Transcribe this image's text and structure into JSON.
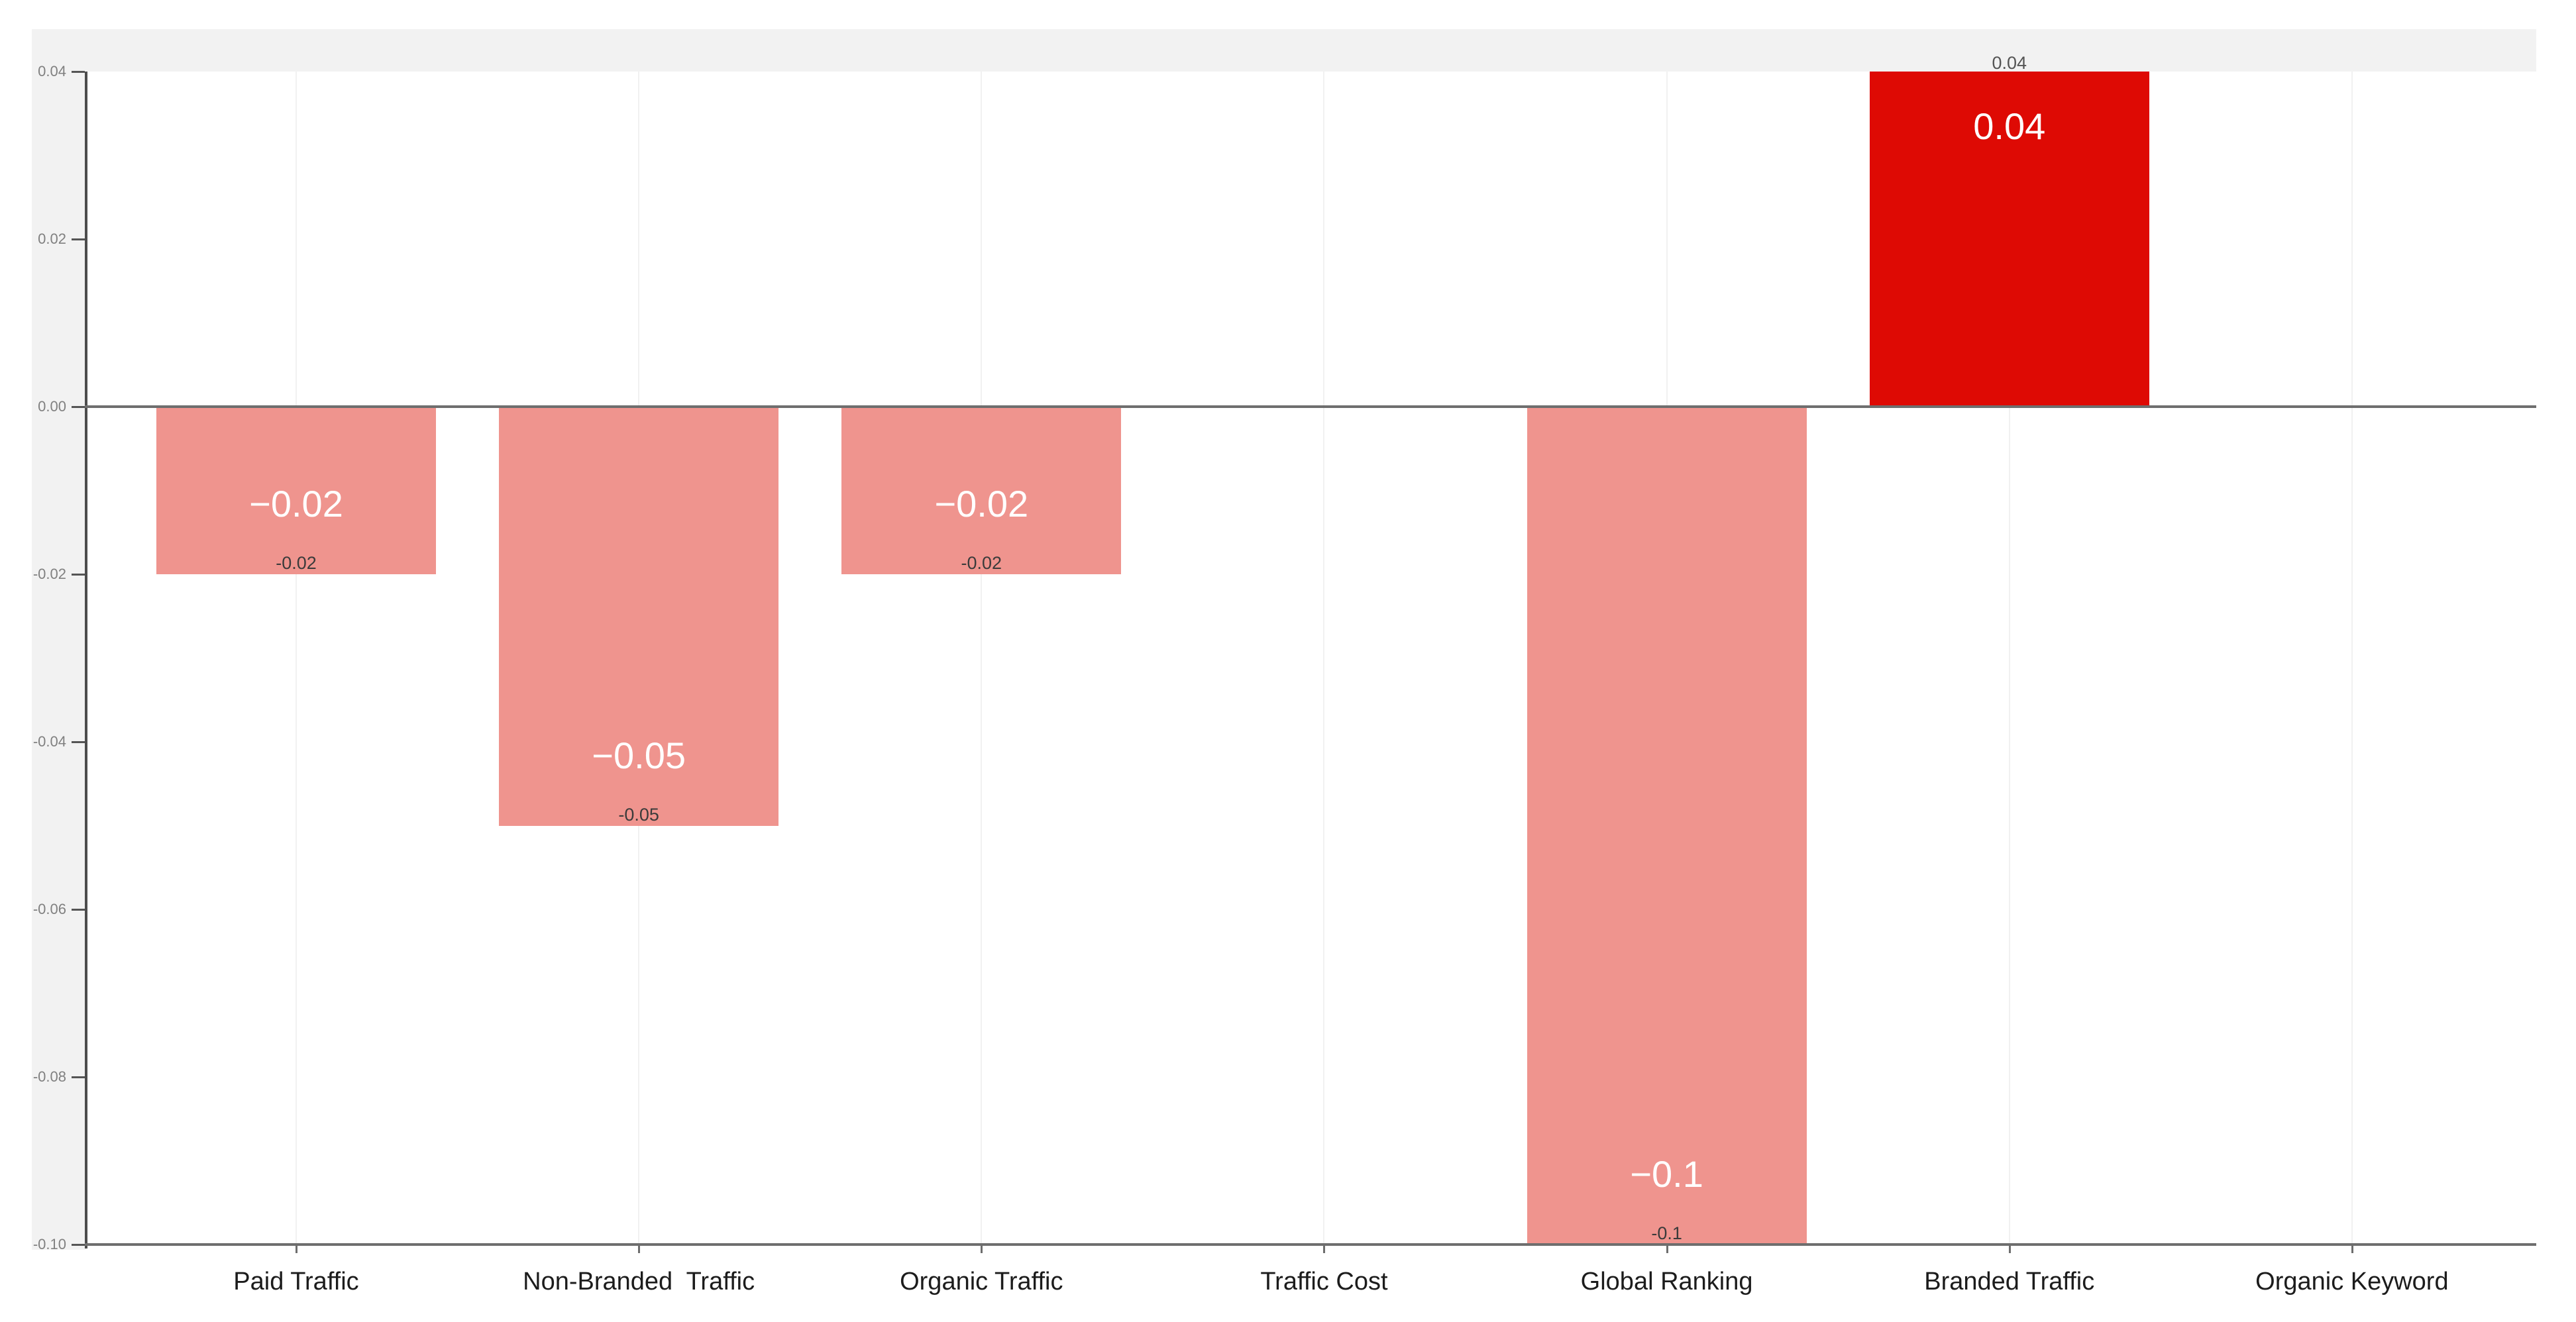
{
  "chart_data": {
    "type": "bar",
    "title": "",
    "xlabel": "",
    "ylabel": "",
    "categories": [
      "Paid Traffic",
      "Non-Branded  Traffic",
      "Organic Traffic",
      "Traffic Cost",
      "Global Ranking",
      "Branded Traffic",
      "Organic Keyword"
    ],
    "values": [
      -0.02,
      -0.05,
      -0.02,
      0,
      -0.1,
      0.04,
      0
    ],
    "bar_labels_inside": [
      "−0.02",
      "−0.05",
      "−0.02",
      "",
      "−0.1",
      "0.04",
      ""
    ],
    "bar_labels_end": [
      "-0.02",
      "-0.05",
      "-0.02",
      "",
      "-0.1",
      "0.04",
      ""
    ],
    "y_ticks": [
      {
        "value": 0.04,
        "label": "0.04"
      },
      {
        "value": 0.02,
        "label": "0.02"
      },
      {
        "value": 0.0,
        "label": "0.00"
      },
      {
        "value": -0.02,
        "label": "-0.02"
      },
      {
        "value": -0.04,
        "label": "-0.04"
      },
      {
        "value": -0.06,
        "label": "-0.06"
      },
      {
        "value": -0.08,
        "label": "-0.08"
      },
      {
        "value": -0.1,
        "label": "-0.10"
      }
    ],
    "ylim": [
      -0.1,
      0.04
    ],
    "grid": "vertical-category-gridlines",
    "legend": "none",
    "colors": {
      "positive_bar": "#DE0A04",
      "negative_bar": "#EF948E"
    }
  },
  "colors": {
    "page_bg": "#FFFFFF",
    "margin_bg": "#F2F2F2",
    "plot_bg": "#FFFFFF",
    "axis_line": "#4D4D4D",
    "baseline": "#6E6E6E",
    "gridline": "#F1F1F1",
    "tick_label": "#808080",
    "bar_label_inside": "#FFFFFF",
    "bar_label_end": "#3B3B3B",
    "category_label": "#1C1C1C"
  }
}
